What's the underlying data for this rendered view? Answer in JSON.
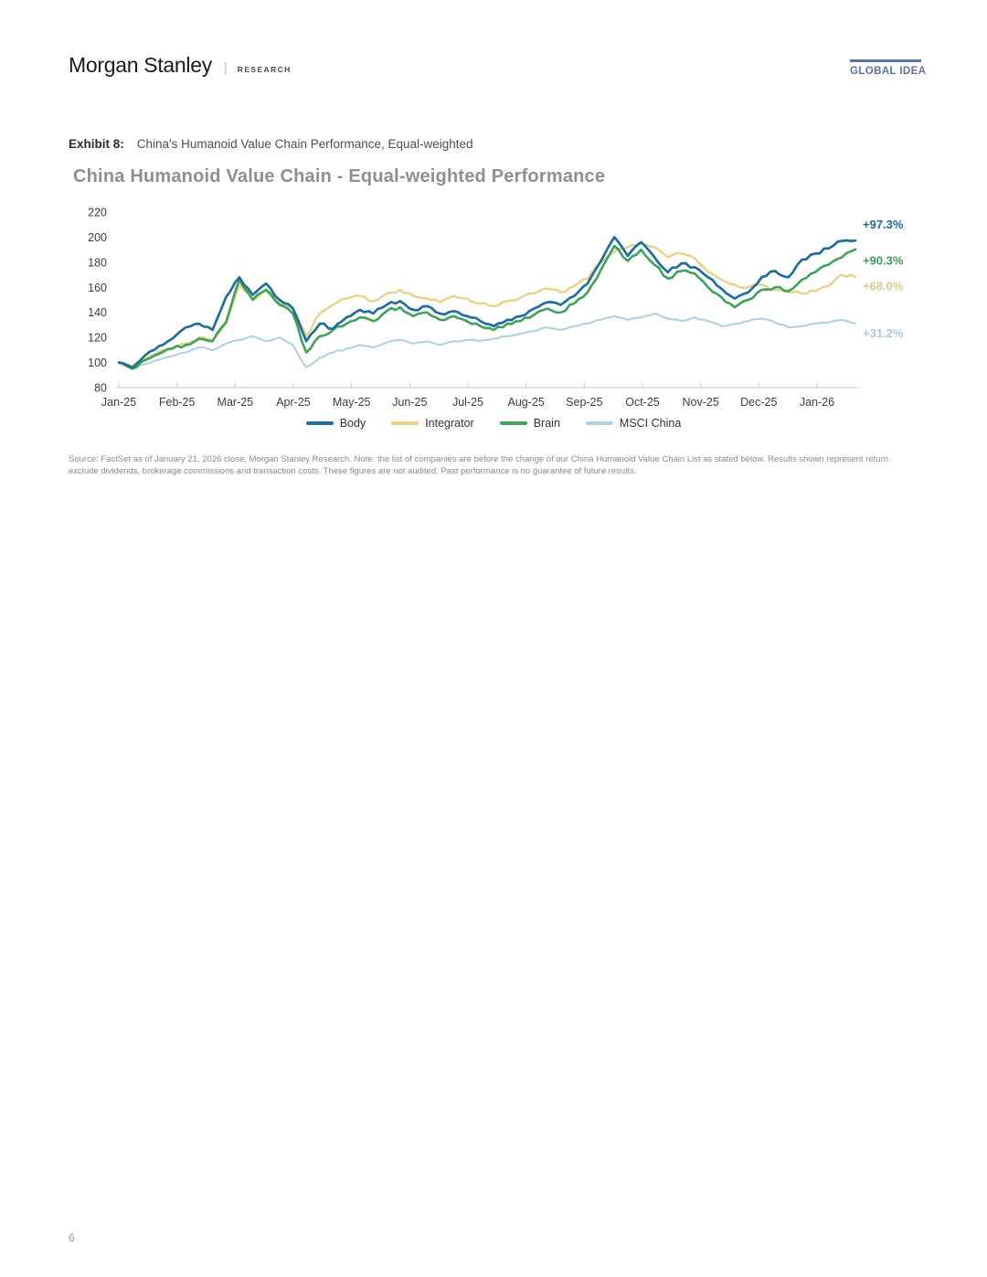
{
  "header": {
    "brand": "Morgan Stanley",
    "divider": "|",
    "department": "RESEARCH",
    "badge": "GLOBAL IDEA"
  },
  "exhibit": {
    "label": "Exhibit 8:",
    "caption": "China's Humanoid Value Chain Performance, Equal-weighted"
  },
  "chart_data": {
    "type": "line",
    "title": "China Humanoid Value Chain - Equal-weighted Performance",
    "x_tick_labels": [
      "Jan-25",
      "Feb-25",
      "Mar-25",
      "Apr-25",
      "May-25",
      "Jun-25",
      "Jul-25",
      "Aug-25",
      "Sep-25",
      "Oct-25",
      "Nov-25",
      "Dec-25",
      "Jan-26"
    ],
    "y_ticks": [
      220,
      200,
      180,
      160,
      140,
      120,
      100,
      80
    ],
    "ylim": [
      80,
      220
    ],
    "x_range_months": [
      0,
      12.66
    ],
    "grid": false,
    "legend_position": "bottom",
    "series": [
      {
        "name": "Integrator",
        "color": "#E7D28A",
        "end_label": "+68.0%",
        "end_label_color": "#DCC98C",
        "label_dy": 14,
        "noise": 1.3,
        "stroke": 2.4,
        "values": [
          100,
          97,
          103,
          109,
          112,
          115,
          120,
          118,
          131,
          162,
          150,
          157,
          148,
          144,
          121,
          139,
          146,
          151,
          153,
          149,
          155,
          158,
          153,
          151,
          148,
          153,
          151,
          147,
          145,
          149,
          152,
          155,
          159,
          156,
          161,
          167,
          180,
          188,
          192,
          195,
          192,
          184,
          187,
          183,
          172,
          166,
          162,
          160,
          162,
          158,
          156,
          155,
          157,
          161,
          170,
          168.0
        ]
      },
      {
        "name": "MSCI China",
        "color": "#AFD2DC",
        "end_label": "+31.2%",
        "end_label_color": "#A9CDD8",
        "label_dy": 15,
        "noise": 0.7,
        "stroke": 2.1,
        "values": [
          100,
          96,
          99,
          102,
          105,
          108,
          112,
          110,
          115,
          118,
          121,
          117,
          120,
          114,
          96,
          104,
          108,
          111,
          114,
          112,
          116,
          118,
          115,
          117,
          114,
          117,
          118,
          117,
          119,
          121,
          123,
          125,
          128,
          126,
          129,
          131,
          134,
          137,
          134,
          136,
          139,
          135,
          133,
          136,
          133,
          129,
          131,
          133,
          135,
          132,
          128,
          129,
          131,
          132,
          134,
          131.2
        ]
      },
      {
        "name": "Brain",
        "color": "#3EA25B",
        "end_label": "+90.3%",
        "end_label_color": "#3E9D57",
        "label_dy": 17,
        "noise": 1.4,
        "stroke": 2.6,
        "values": [
          100,
          95,
          102,
          107,
          111,
          114,
          119,
          117,
          132,
          166,
          150,
          158,
          146,
          139,
          108,
          121,
          126,
          131,
          136,
          133,
          141,
          144,
          137,
          140,
          134,
          137,
          133,
          129,
          126,
          131,
          133,
          138,
          143,
          140,
          147,
          156,
          174,
          193,
          181,
          190,
          178,
          167,
          173,
          171,
          160,
          152,
          144,
          150,
          158,
          160,
          157,
          166,
          172,
          178,
          184,
          190.3
        ]
      },
      {
        "name": "Body",
        "color": "#1E6F9C",
        "end_label": "+97.3%",
        "end_label_color": "#1D6A96",
        "label_dy": -13,
        "noise": 1.4,
        "stroke": 2.7,
        "values": [
          100,
          96,
          106,
          113,
          119,
          128,
          131,
          126,
          152,
          168,
          154,
          163,
          150,
          143,
          117,
          131,
          127,
          136,
          142,
          139,
          146,
          149,
          142,
          145,
          139,
          141,
          137,
          133,
          129,
          134,
          137,
          143,
          148,
          146,
          153,
          163,
          181,
          200,
          185,
          196,
          184,
          172,
          179,
          176,
          168,
          159,
          151,
          156,
          168,
          173,
          168,
          182,
          187,
          191,
          197,
          197.3
        ]
      }
    ],
    "legend": [
      {
        "label": "Body",
        "color": "#1E6F9C"
      },
      {
        "label": "Integrator",
        "color": "#E7D28A"
      },
      {
        "label": "Brain",
        "color": "#3EA25B"
      },
      {
        "label": "MSCI China",
        "color": "#AFD2DC"
      }
    ]
  },
  "source_note": {
    "line1": "Source: FactSet as of January 21, 2026 close, Morgan Stanley Research. Note: the list of companies are before the change of our China Humanoid Value Chain List as stated below. Results shown represent return",
    "line2": "exclude dividends, brokerage commissions and transaction costs. These figures are not audited. Past performance is no guarantee of future results."
  },
  "footer": {
    "page_number": "6"
  }
}
